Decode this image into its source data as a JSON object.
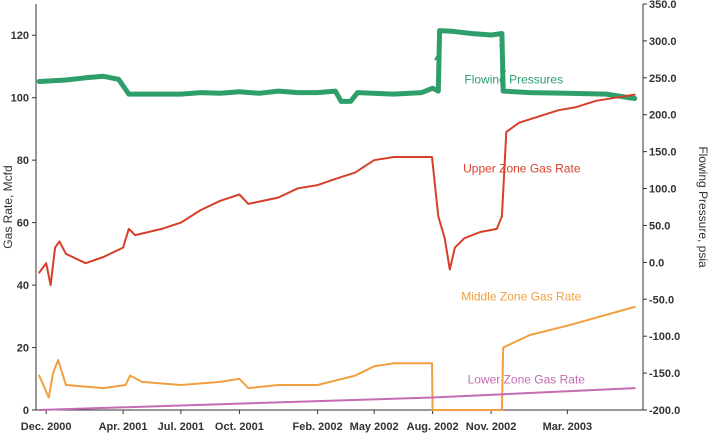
{
  "chart_data": {
    "type": "line",
    "title": "",
    "ylabel_left": "Gas Rate, Mcfd",
    "ylabel_right": "Flowing Pressure, psia",
    "xlim": [
      "2000-11-15",
      "2003-06-28"
    ],
    "ylim_left": [
      0,
      130
    ],
    "ylim_right": [
      -200,
      350
    ],
    "grid": false,
    "legend": "inline-labels",
    "x_ticks": [
      {
        "date": "2000-12-01",
        "label": "Dec. 2000"
      },
      {
        "date": "2001-04-01",
        "label": "Apr. 2001"
      },
      {
        "date": "2001-07-01",
        "label": "Jul. 2001"
      },
      {
        "date": "2001-10-01",
        "label": "Oct. 2001"
      },
      {
        "date": "2002-02-01",
        "label": "Feb. 2002"
      },
      {
        "date": "2002-05-01",
        "label": "May 2002"
      },
      {
        "date": "2002-08-01",
        "label": "Aug. 2002"
      },
      {
        "date": "2002-11-01",
        "label": "Nov. 2002"
      },
      {
        "date": "2003-03-01",
        "label": "Mar. 2003"
      }
    ],
    "y_ticks_left": [
      "0",
      "20",
      "40",
      "60",
      "80",
      "100",
      "120"
    ],
    "y_ticks_right": [
      "-200.0",
      "-150.0",
      "-100.0",
      "-50.0",
      "0.0",
      "50.0",
      "100.0",
      "150.0",
      "200.0",
      "250.0",
      "300.0",
      "350.0"
    ],
    "series": [
      {
        "name": "Flowing Pressures",
        "axis": "right",
        "color": "#2e9e6b",
        "points": [
          [
            "2000-11-20",
            245
          ],
          [
            "2001-01-01",
            247
          ],
          [
            "2001-02-01",
            250
          ],
          [
            "2001-03-01",
            252
          ],
          [
            "2001-03-25",
            248
          ],
          [
            "2001-04-10",
            228
          ],
          [
            "2001-06-01",
            228
          ],
          [
            "2001-07-01",
            228
          ],
          [
            "2001-08-01",
            230
          ],
          [
            "2001-09-01",
            229
          ],
          [
            "2001-10-01",
            231
          ],
          [
            "2001-11-01",
            229
          ],
          [
            "2001-12-01",
            232
          ],
          [
            "2002-01-01",
            230
          ],
          [
            "2002-02-01",
            230
          ],
          [
            "2002-03-01",
            232
          ],
          [
            "2002-03-10",
            218
          ],
          [
            "2002-03-25",
            218
          ],
          [
            "2002-04-05",
            230
          ],
          [
            "2002-06-01",
            228
          ],
          [
            "2002-07-15",
            230
          ],
          [
            "2002-08-01",
            236
          ],
          [
            "2002-08-10",
            232
          ],
          [
            "2002-08-12",
            314
          ],
          [
            "2002-09-01",
            313
          ],
          [
            "2002-10-01",
            310
          ],
          [
            "2002-11-01",
            308
          ],
          [
            "2002-11-18",
            310
          ],
          [
            "2002-11-20",
            232
          ],
          [
            "2003-01-01",
            230
          ],
          [
            "2003-03-01",
            229
          ],
          [
            "2003-05-01",
            228
          ],
          [
            "2003-06-15",
            222
          ]
        ],
        "label": "Flowing Pressures"
      },
      {
        "name": "Upper Zone Gas Rate",
        "axis": "left",
        "color": "#d6402a",
        "points": [
          [
            "2000-11-20",
            44
          ],
          [
            "2000-12-01",
            47
          ],
          [
            "2000-12-08",
            40
          ],
          [
            "2000-12-15",
            52
          ],
          [
            "2000-12-22",
            54
          ],
          [
            "2001-01-01",
            50
          ],
          [
            "2001-02-01",
            47
          ],
          [
            "2001-03-01",
            49
          ],
          [
            "2001-04-01",
            52
          ],
          [
            "2001-04-10",
            58
          ],
          [
            "2001-04-20",
            56
          ],
          [
            "2001-06-01",
            58
          ],
          [
            "2001-07-01",
            60
          ],
          [
            "2001-08-01",
            64
          ],
          [
            "2001-09-01",
            67
          ],
          [
            "2001-10-01",
            69
          ],
          [
            "2001-10-15",
            66
          ],
          [
            "2001-12-01",
            68
          ],
          [
            "2002-01-01",
            71
          ],
          [
            "2002-02-01",
            72
          ],
          [
            "2002-03-01",
            74
          ],
          [
            "2002-04-01",
            76
          ],
          [
            "2002-05-01",
            80
          ],
          [
            "2002-06-01",
            81
          ],
          [
            "2002-07-01",
            81
          ],
          [
            "2002-07-31",
            81
          ],
          [
            "2002-08-10",
            62
          ],
          [
            "2002-08-20",
            55
          ],
          [
            "2002-08-28",
            45
          ],
          [
            "2002-09-05",
            52
          ],
          [
            "2002-09-20",
            55
          ],
          [
            "2002-10-15",
            57
          ],
          [
            "2002-11-10",
            58
          ],
          [
            "2002-11-18",
            62
          ],
          [
            "2002-11-25",
            89
          ],
          [
            "2002-12-15",
            92
          ],
          [
            "2003-01-15",
            94
          ],
          [
            "2003-02-15",
            96
          ],
          [
            "2003-03-15",
            97
          ],
          [
            "2003-04-15",
            99
          ],
          [
            "2003-06-15",
            101
          ]
        ],
        "label": "Upper Zone Gas Rate"
      },
      {
        "name": "Middle Zone Gas Rate",
        "axis": "left",
        "color": "#f0a040",
        "points": [
          [
            "2000-11-20",
            11
          ],
          [
            "2000-12-05",
            4
          ],
          [
            "2000-12-12",
            12
          ],
          [
            "2000-12-20",
            16
          ],
          [
            "2001-01-01",
            8
          ],
          [
            "2001-03-01",
            7
          ],
          [
            "2001-04-05",
            8
          ],
          [
            "2001-04-12",
            11
          ],
          [
            "2001-05-01",
            9
          ],
          [
            "2001-07-01",
            8
          ],
          [
            "2001-09-01",
            9
          ],
          [
            "2001-10-01",
            10
          ],
          [
            "2001-10-15",
            7
          ],
          [
            "2001-12-01",
            8
          ],
          [
            "2002-02-01",
            8
          ],
          [
            "2002-04-01",
            11
          ],
          [
            "2002-05-01",
            14
          ],
          [
            "2002-06-01",
            15
          ],
          [
            "2002-07-31",
            15
          ],
          [
            "2002-08-01",
            0
          ],
          [
            "2002-11-18",
            0
          ],
          [
            "2002-11-20",
            20
          ],
          [
            "2003-01-01",
            24
          ],
          [
            "2003-03-01",
            27
          ],
          [
            "2003-06-15",
            33
          ]
        ],
        "label": "Middle Zone Gas Rate"
      },
      {
        "name": "Lower Zone Gas Rate",
        "axis": "left",
        "color": "#c56bb5",
        "points": [
          [
            "2000-11-20",
            0
          ],
          [
            "2002-08-01",
            4
          ],
          [
            "2003-06-15",
            7
          ]
        ],
        "label": "Lower Zone Gas Rate"
      }
    ]
  }
}
